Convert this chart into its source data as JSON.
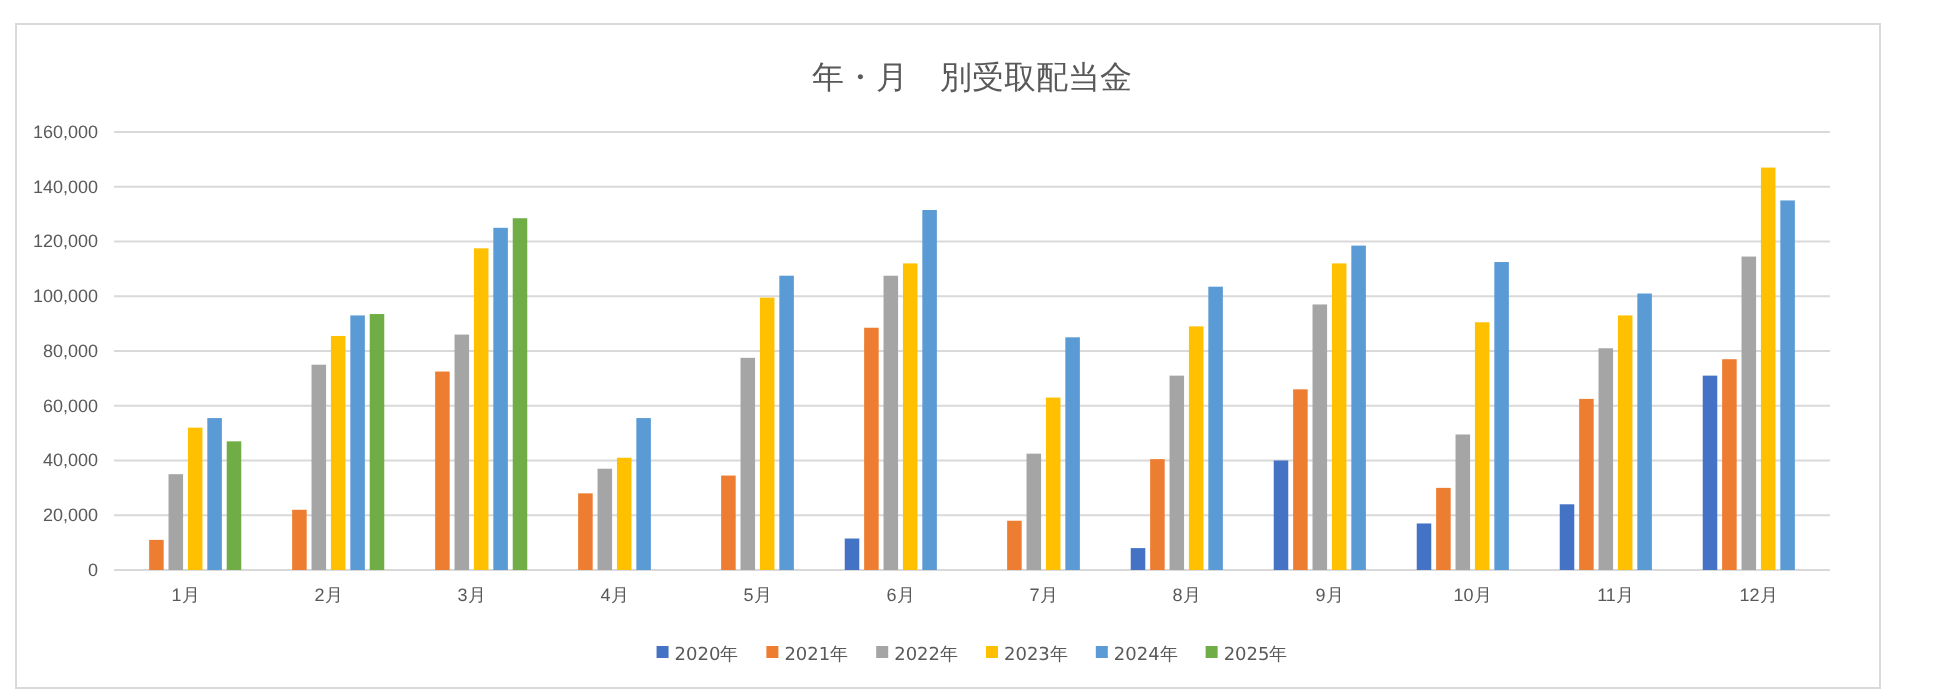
{
  "chart_data": {
    "type": "bar",
    "title": "年・月　別受取配当金",
    "categories": [
      "1月",
      "2月",
      "3月",
      "4月",
      "5月",
      "6月",
      "7月",
      "8月",
      "9月",
      "10月",
      "11月",
      "12月"
    ],
    "series": [
      {
        "name": "2020年",
        "color": "#4472c4",
        "values": [
          null,
          null,
          null,
          null,
          null,
          11500,
          null,
          8000,
          40000,
          17000,
          24000,
          71000
        ]
      },
      {
        "name": "2021年",
        "color": "#ed7d31",
        "values": [
          11000,
          22000,
          72500,
          28000,
          34500,
          88500,
          18000,
          40500,
          66000,
          30000,
          62500,
          77000
        ]
      },
      {
        "name": "2022年",
        "color": "#a5a5a5",
        "values": [
          35000,
          75000,
          86000,
          37000,
          77500,
          107500,
          42500,
          71000,
          97000,
          49500,
          81000,
          114500
        ]
      },
      {
        "name": "2023年",
        "color": "#ffc000",
        "values": [
          52000,
          85500,
          117500,
          41000,
          99500,
          112000,
          63000,
          89000,
          112000,
          90500,
          93000,
          147000
        ]
      },
      {
        "name": "2024年",
        "color": "#5b9bd5",
        "values": [
          55500,
          93000,
          125000,
          55500,
          107500,
          131500,
          85000,
          103500,
          118500,
          112500,
          101000,
          135000
        ]
      },
      {
        "name": "2025年",
        "color": "#70ad47",
        "values": [
          47000,
          93500,
          128500,
          null,
          null,
          null,
          null,
          null,
          null,
          null,
          null,
          null
        ]
      }
    ],
    "ylim": [
      0,
      160000
    ],
    "yticks": [
      {
        "value": 0,
        "label": "0"
      },
      {
        "value": 20000,
        "label": "20,000"
      },
      {
        "value": 40000,
        "label": "40,000"
      },
      {
        "value": 60000,
        "label": "60,000"
      },
      {
        "value": 80000,
        "label": "80,000"
      },
      {
        "value": 100000,
        "label": "100,000"
      },
      {
        "value": 120000,
        "label": "120,000"
      },
      {
        "value": 140000,
        "label": "140,000"
      },
      {
        "value": 160000,
        "label": "160,000"
      }
    ],
    "grid": "y",
    "legend": "bottom"
  }
}
